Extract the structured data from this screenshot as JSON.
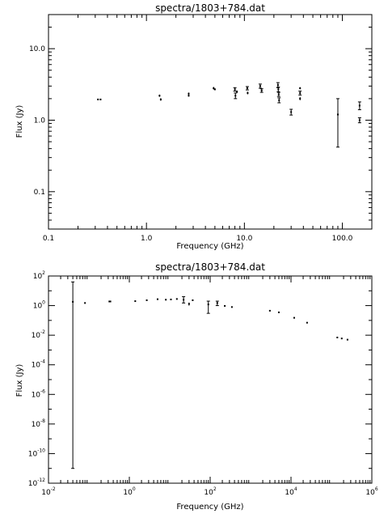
{
  "chart_data": [
    {
      "type": "scatter",
      "title": "spectra/1803+784.dat",
      "xlabel": "Frequency (GHz)",
      "ylabel": "Flux (Jy)",
      "xscale": "log",
      "yscale": "log",
      "xlim": [
        0.1,
        200
      ],
      "ylim": [
        0.03,
        30
      ],
      "xticks": [
        {
          "value": 0.1,
          "label": "0.1"
        },
        {
          "value": 1,
          "label": "1.0"
        },
        {
          "value": 10,
          "label": "10.0"
        },
        {
          "value": 100,
          "label": "100.0"
        }
      ],
      "yticks": [
        {
          "value": 0.1,
          "label": "0.1"
        },
        {
          "value": 1,
          "label": "1.0"
        },
        {
          "value": 10,
          "label": "10.0"
        }
      ],
      "points": [
        {
          "x": 0.32,
          "y": 1.95,
          "err": 0.04
        },
        {
          "x": 0.34,
          "y": 1.95,
          "err": 0.04
        },
        {
          "x": 1.36,
          "y": 2.2,
          "err": 0.08
        },
        {
          "x": 1.4,
          "y": 1.95,
          "err": 0.08
        },
        {
          "x": 2.7,
          "y": 2.35,
          "err": 0.08
        },
        {
          "x": 2.7,
          "y": 2.2,
          "err": 0.06
        },
        {
          "x": 4.85,
          "y": 2.8,
          "err": 0.12
        },
        {
          "x": 5.0,
          "y": 2.7,
          "err": 0.08
        },
        {
          "x": 8.0,
          "y": 2.7,
          "err": 0.15
        },
        {
          "x": 8.1,
          "y": 2.2,
          "err": 0.2
        },
        {
          "x": 8.4,
          "y": 2.5,
          "err": 0.1
        },
        {
          "x": 10.7,
          "y": 2.8,
          "err": 0.15
        },
        {
          "x": 10.8,
          "y": 2.4,
          "err": 0.1
        },
        {
          "x": 14.5,
          "y": 3.0,
          "err": 0.2
        },
        {
          "x": 15.0,
          "y": 2.6,
          "err": 0.15
        },
        {
          "x": 22.0,
          "y": 3.1,
          "err": 0.25
        },
        {
          "x": 22.2,
          "y": 2.7,
          "err": 0.2
        },
        {
          "x": 22.4,
          "y": 2.3,
          "err": 0.15
        },
        {
          "x": 22.6,
          "y": 1.9,
          "err": 0.15
        },
        {
          "x": 30.0,
          "y": 1.3,
          "err": 0.12
        },
        {
          "x": 37.0,
          "y": 2.8,
          "err": 0.1
        },
        {
          "x": 37.0,
          "y": 2.4,
          "err": 0.15
        },
        {
          "x": 37.0,
          "y": 2.0,
          "err": 0.1
        },
        {
          "x": 90.0,
          "y": 1.2,
          "errlo": 0.78,
          "errhi": 0.8
        },
        {
          "x": 150.0,
          "y": 1.6,
          "err": 0.2
        },
        {
          "x": 150.0,
          "y": 1.0,
          "err": 0.08
        }
      ]
    },
    {
      "type": "scatter",
      "title": "spectra/1803+784.dat",
      "xlabel": "Frequency (GHz)",
      "ylabel": "Flux (Jy)",
      "xscale": "log",
      "yscale": "log",
      "xlim": [
        0.01,
        1000000
      ],
      "ylim": [
        1e-12,
        100
      ],
      "xticks": [
        {
          "value": 0.01,
          "base": "10",
          "exp": "-2"
        },
        {
          "value": 1,
          "base": "10",
          "exp": "0"
        },
        {
          "value": 100,
          "base": "10",
          "exp": "2"
        },
        {
          "value": 10000,
          "base": "10",
          "exp": "4"
        },
        {
          "value": 1000000,
          "base": "10",
          "exp": "6"
        }
      ],
      "yticks": [
        {
          "value": 1e-12,
          "base": "10",
          "exp": "-12"
        },
        {
          "value": 1e-10,
          "base": "10",
          "exp": "-10"
        },
        {
          "value": 1e-08,
          "base": "10",
          "exp": "-8"
        },
        {
          "value": 1e-06,
          "base": "10",
          "exp": "-6"
        },
        {
          "value": 0.0001,
          "base": "10",
          "exp": "-4"
        },
        {
          "value": 0.01,
          "base": "10",
          "exp": "-2"
        },
        {
          "value": 1,
          "base": "10",
          "exp": "0"
        },
        {
          "value": 100,
          "base": "10",
          "exp": "2"
        }
      ],
      "points": [
        {
          "x": 0.04,
          "y": 1.8,
          "errlo": 1.79999999999,
          "errhi": 38
        },
        {
          "x": 0.08,
          "y": 1.5
        },
        {
          "x": 0.32,
          "y": 1.9
        },
        {
          "x": 0.34,
          "y": 1.9
        },
        {
          "x": 1.4,
          "y": 2.0
        },
        {
          "x": 2.7,
          "y": 2.3
        },
        {
          "x": 5.0,
          "y": 2.7
        },
        {
          "x": 8.0,
          "y": 2.5
        },
        {
          "x": 10.7,
          "y": 2.6
        },
        {
          "x": 15.0,
          "y": 2.8
        },
        {
          "x": 22.0,
          "y": 2.5,
          "errlo": 1.0,
          "errhi": 1.5
        },
        {
          "x": 30.0,
          "y": 1.3,
          "errlo": 0.3,
          "errhi": 0.3
        },
        {
          "x": 37.0,
          "y": 2.3
        },
        {
          "x": 90.0,
          "y": 1.2,
          "errlo": 0.9,
          "errhi": 0.8
        },
        {
          "x": 150.0,
          "y": 1.5,
          "errlo": 0.5,
          "errhi": 0.5
        },
        {
          "x": 230.0,
          "y": 0.95
        },
        {
          "x": 345.0,
          "y": 0.8
        },
        {
          "x": 3000.0,
          "y": 0.45
        },
        {
          "x": 5000.0,
          "y": 0.35
        },
        {
          "x": 12000.0,
          "y": 0.15
        },
        {
          "x": 25000.0,
          "y": 0.07
        },
        {
          "x": 140000.0,
          "y": 0.007
        },
        {
          "x": 180000.0,
          "y": 0.006
        },
        {
          "x": 250000.0,
          "y": 0.005
        }
      ]
    }
  ]
}
